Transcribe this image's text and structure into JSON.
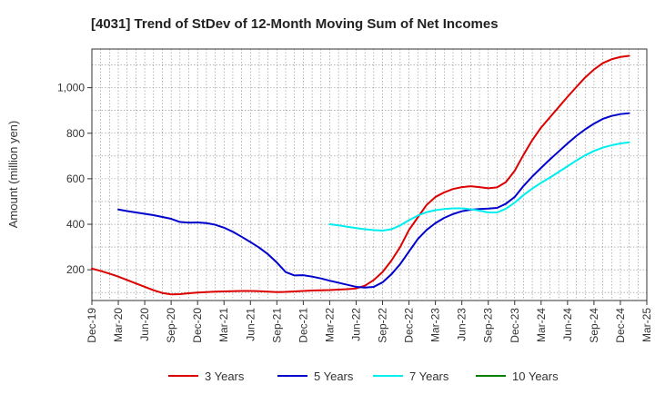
{
  "chart_data": {
    "type": "line",
    "title": "[4031]  Trend of StDev of 12-Month Moving Sum of Net Incomes",
    "xlabel": "",
    "ylabel": "Amount (million yen)",
    "x_ticks": [
      "Dec-19",
      "Mar-20",
      "Jun-20",
      "Sep-20",
      "Dec-20",
      "Mar-21",
      "Jun-21",
      "Sep-21",
      "Dec-21",
      "Mar-22",
      "Jun-22",
      "Sep-22",
      "Dec-22",
      "Mar-23",
      "Jun-23",
      "Sep-23",
      "Dec-23",
      "Mar-24",
      "Jun-24",
      "Sep-24",
      "Dec-24",
      "Mar-25"
    ],
    "y_ticks": [
      200,
      400,
      600,
      800,
      1000
    ],
    "y_tick_labels": [
      "200",
      "400",
      "600",
      "800",
      "1,000"
    ],
    "ylim": [
      65,
      1170
    ],
    "grid": true,
    "legend_position": "bottom",
    "series": [
      {
        "name": "3 Years",
        "color": "#dd0000",
        "points": [
          [
            "Dec-19",
            205
          ],
          [
            "Jan-20",
            195
          ],
          [
            "Feb-20",
            183
          ],
          [
            "Mar-20",
            170
          ],
          [
            "Apr-20",
            155
          ],
          [
            "May-20",
            140
          ],
          [
            "Jun-20",
            125
          ],
          [
            "Jul-20",
            110
          ],
          [
            "Aug-20",
            98
          ],
          [
            "Sep-20",
            92
          ],
          [
            "Oct-20",
            93
          ],
          [
            "Nov-20",
            97
          ],
          [
            "Dec-20",
            100
          ],
          [
            "Jan-21",
            102
          ],
          [
            "Feb-21",
            104
          ],
          [
            "Mar-21",
            105
          ],
          [
            "Apr-21",
            106
          ],
          [
            "May-21",
            107
          ],
          [
            "Jun-21",
            107
          ],
          [
            "Jul-21",
            106
          ],
          [
            "Aug-21",
            104
          ],
          [
            "Sep-21",
            102
          ],
          [
            "Oct-21",
            103
          ],
          [
            "Nov-21",
            105
          ],
          [
            "Dec-21",
            107
          ],
          [
            "Jan-22",
            109
          ],
          [
            "Feb-22",
            110
          ],
          [
            "Mar-22",
            111
          ],
          [
            "Apr-22",
            113
          ],
          [
            "May-22",
            115
          ],
          [
            "Jun-22",
            118
          ],
          [
            "Jul-22",
            130
          ],
          [
            "Aug-22",
            155
          ],
          [
            "Sep-22",
            190
          ],
          [
            "Oct-22",
            240
          ],
          [
            "Nov-22",
            300
          ],
          [
            "Dec-22",
            375
          ],
          [
            "Jan-23",
            430
          ],
          [
            "Feb-23",
            485
          ],
          [
            "Mar-23",
            520
          ],
          [
            "Apr-23",
            540
          ],
          [
            "May-23",
            555
          ],
          [
            "Jun-23",
            563
          ],
          [
            "Jul-23",
            567
          ],
          [
            "Aug-23",
            563
          ],
          [
            "Sep-23",
            558
          ],
          [
            "Oct-23",
            562
          ],
          [
            "Nov-23",
            585
          ],
          [
            "Dec-23",
            635
          ],
          [
            "Jan-24",
            705
          ],
          [
            "Feb-24",
            770
          ],
          [
            "Mar-24",
            825
          ],
          [
            "Apr-24",
            870
          ],
          [
            "May-24",
            915
          ],
          [
            "Jun-24",
            960
          ],
          [
            "Jul-24",
            1003
          ],
          [
            "Aug-24",
            1045
          ],
          [
            "Sep-24",
            1080
          ],
          [
            "Oct-24",
            1108
          ],
          [
            "Nov-24",
            1125
          ],
          [
            "Dec-24",
            1135
          ],
          [
            "Jan-25",
            1140
          ]
        ]
      },
      {
        "name": "5 Years",
        "color": "#0000cc",
        "points": [
          [
            "Mar-20",
            465
          ],
          [
            "Apr-20",
            458
          ],
          [
            "May-20",
            452
          ],
          [
            "Jun-20",
            446
          ],
          [
            "Jul-20",
            440
          ],
          [
            "Aug-20",
            432
          ],
          [
            "Sep-20",
            424
          ],
          [
            "Oct-20",
            410
          ],
          [
            "Nov-20",
            407
          ],
          [
            "Dec-20",
            408
          ],
          [
            "Jan-21",
            405
          ],
          [
            "Feb-21",
            398
          ],
          [
            "Mar-21",
            385
          ],
          [
            "Apr-21",
            367
          ],
          [
            "May-21",
            345
          ],
          [
            "Jun-21",
            322
          ],
          [
            "Jul-21",
            297
          ],
          [
            "Aug-21",
            268
          ],
          [
            "Sep-21",
            232
          ],
          [
            "Oct-21",
            190
          ],
          [
            "Nov-21",
            175
          ],
          [
            "Dec-21",
            176
          ],
          [
            "Jan-22",
            170
          ],
          [
            "Feb-22",
            162
          ],
          [
            "Mar-22",
            152
          ],
          [
            "Apr-22",
            143
          ],
          [
            "May-22",
            134
          ],
          [
            "Jun-22",
            125
          ],
          [
            "Jul-22",
            122
          ],
          [
            "Aug-22",
            125
          ],
          [
            "Sep-22",
            145
          ],
          [
            "Oct-22",
            180
          ],
          [
            "Nov-22",
            225
          ],
          [
            "Dec-22",
            280
          ],
          [
            "Jan-23",
            335
          ],
          [
            "Feb-23",
            375
          ],
          [
            "Mar-23",
            405
          ],
          [
            "Apr-23",
            428
          ],
          [
            "May-23",
            445
          ],
          [
            "Jun-23",
            457
          ],
          [
            "Jul-23",
            464
          ],
          [
            "Aug-23",
            467
          ],
          [
            "Sep-23",
            469
          ],
          [
            "Oct-23",
            472
          ],
          [
            "Nov-23",
            490
          ],
          [
            "Dec-23",
            520
          ],
          [
            "Jan-24",
            568
          ],
          [
            "Feb-24",
            610
          ],
          [
            "Mar-24",
            648
          ],
          [
            "Apr-24",
            685
          ],
          [
            "May-24",
            720
          ],
          [
            "Jun-24",
            755
          ],
          [
            "Jul-24",
            788
          ],
          [
            "Aug-24",
            817
          ],
          [
            "Sep-24",
            842
          ],
          [
            "Oct-24",
            863
          ],
          [
            "Nov-24",
            876
          ],
          [
            "Dec-24",
            884
          ],
          [
            "Jan-25",
            888
          ]
        ]
      },
      {
        "name": "7 Years",
        "color": "#00eeee",
        "points": [
          [
            "Mar-22",
            400
          ],
          [
            "Apr-22",
            395
          ],
          [
            "May-22",
            389
          ],
          [
            "Jun-22",
            383
          ],
          [
            "Jul-22",
            378
          ],
          [
            "Aug-22",
            374
          ],
          [
            "Sep-22",
            372
          ],
          [
            "Oct-22",
            378
          ],
          [
            "Nov-22",
            395
          ],
          [
            "Dec-22",
            418
          ],
          [
            "Jan-23",
            438
          ],
          [
            "Feb-23",
            453
          ],
          [
            "Mar-23",
            462
          ],
          [
            "Apr-23",
            467
          ],
          [
            "May-23",
            470
          ],
          [
            "Jun-23",
            470
          ],
          [
            "Jul-23",
            466
          ],
          [
            "Aug-23",
            460
          ],
          [
            "Sep-23",
            452
          ],
          [
            "Oct-23",
            452
          ],
          [
            "Nov-23",
            468
          ],
          [
            "Dec-23",
            495
          ],
          [
            "Jan-24",
            528
          ],
          [
            "Feb-24",
            557
          ],
          [
            "Mar-24",
            582
          ],
          [
            "Apr-24",
            605
          ],
          [
            "May-24",
            630
          ],
          [
            "Jun-24",
            655
          ],
          [
            "Jul-24",
            680
          ],
          [
            "Aug-24",
            703
          ],
          [
            "Sep-24",
            722
          ],
          [
            "Oct-24",
            737
          ],
          [
            "Nov-24",
            747
          ],
          [
            "Dec-24",
            755
          ],
          [
            "Jan-25",
            760
          ]
        ]
      },
      {
        "name": "10 Years",
        "color": "#008000",
        "points": []
      }
    ]
  }
}
